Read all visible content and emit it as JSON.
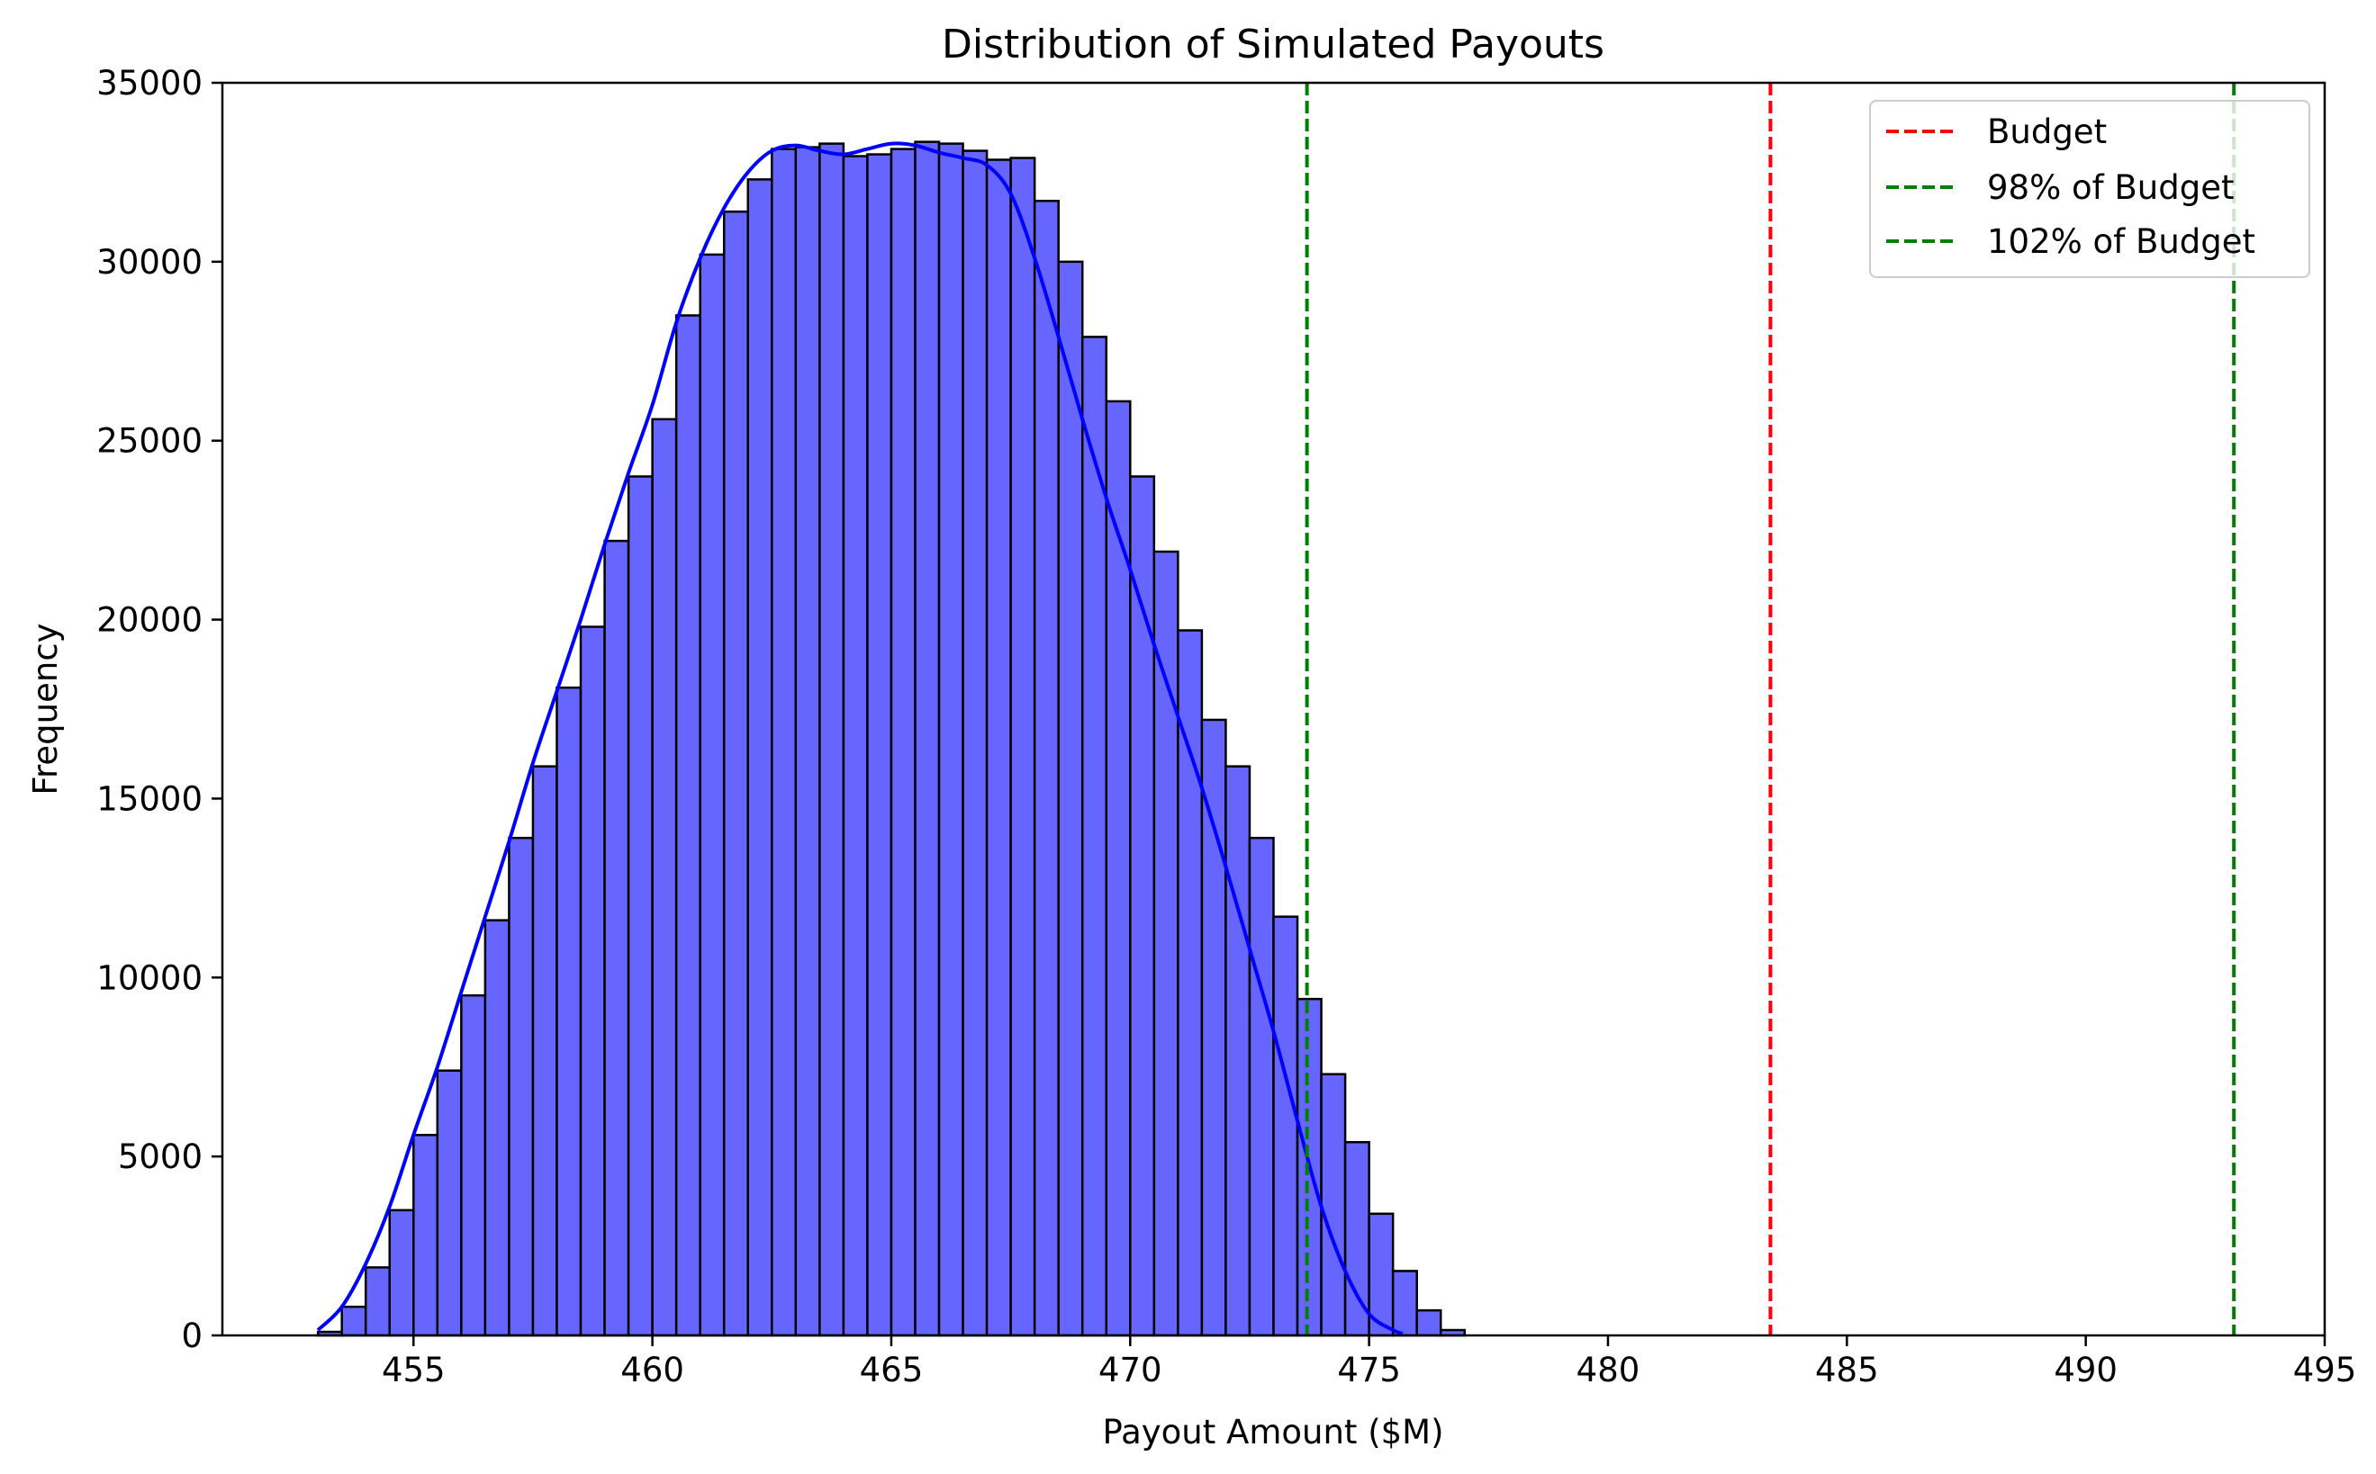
{
  "chart_data": {
    "type": "bar",
    "title": "Distribution of Simulated Payouts",
    "xlabel": "Payout Amount ($M)",
    "ylabel": "Frequency",
    "xlim": [
      451,
      495
    ],
    "ylim": [
      0,
      35000
    ],
    "x_ticks": [
      455,
      460,
      465,
      470,
      475,
      480,
      485,
      490,
      495
    ],
    "x_tick_labels": [
      "455",
      "460",
      "465",
      "470",
      "475",
      "480",
      "485",
      "490",
      "495"
    ],
    "y_ticks": [
      0,
      5000,
      10000,
      15000,
      20000,
      25000,
      30000,
      35000
    ],
    "y_tick_labels": [
      "0",
      "5000",
      "10000",
      "15000",
      "20000",
      "25000",
      "30000",
      "35000"
    ],
    "grid": false,
    "legend_position": "top-right",
    "bin_start": 453.0,
    "bin_width": 0.5,
    "bar_fill": "#6666ff",
    "bar_edge": "#000000",
    "kde_color": "#0000ff",
    "histogram": [
      100,
      800,
      1900,
      3500,
      5600,
      7400,
      9500,
      11600,
      13900,
      15900,
      18100,
      19800,
      22200,
      24000,
      25600,
      28500,
      30200,
      31400,
      32300,
      33150,
      33200,
      33300,
      32950,
      33000,
      33150,
      33350,
      33300,
      33100,
      32850,
      32900,
      31700,
      30000,
      27900,
      26100,
      24000,
      21900,
      19700,
      17200,
      15900,
      13900,
      11700,
      9400,
      7300,
      5400,
      3400,
      1800,
      700,
      150
    ],
    "kde": {
      "x": [
        453.0,
        453.5,
        454.0,
        454.5,
        455.0,
        455.5,
        456.0,
        456.5,
        457.0,
        457.5,
        458.0,
        458.5,
        459.0,
        459.5,
        460.0,
        460.5,
        461.0,
        461.5,
        462.0,
        462.5,
        463.0,
        463.5,
        464.0,
        464.5,
        465.0,
        465.5,
        466.0,
        466.5,
        467.0,
        467.5,
        468.0,
        468.5,
        469.0,
        469.5,
        470.0,
        470.5,
        471.0,
        471.5,
        472.0,
        472.5,
        473.0,
        473.5,
        474.0,
        474.5,
        475.0,
        475.5,
        475.7
      ],
      "y": [
        150,
        800,
        2000,
        3600,
        5600,
        7500,
        9600,
        11700,
        13800,
        16000,
        18000,
        20000,
        22100,
        24100,
        26000,
        28300,
        30100,
        31500,
        32500,
        33100,
        33250,
        33100,
        33000,
        33150,
        33300,
        33250,
        33050,
        32900,
        32700,
        31900,
        30100,
        27900,
        25600,
        23400,
        21400,
        19300,
        17300,
        15300,
        13100,
        10800,
        8500,
        6000,
        3600,
        1800,
        600,
        150,
        50
      ]
    },
    "vlines": [
      {
        "label": "Budget",
        "x": 483.4,
        "color": "#ff0000"
      },
      {
        "label": "98% of Budget",
        "x": 473.7,
        "color": "#008000"
      },
      {
        "label": "102% of Budget",
        "x": 493.1,
        "color": "#008000"
      }
    ]
  }
}
